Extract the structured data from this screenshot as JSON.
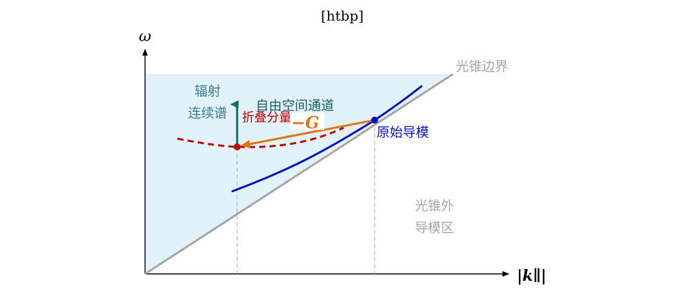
{
  "header": {
    "caption": "[htbp]"
  },
  "axes": {
    "y_label": "ω",
    "x_label": "|k∥|"
  },
  "labels": {
    "light_cone_boundary": "光锥边界",
    "radiation_line1": "辐射",
    "radiation_line2": "连续谱",
    "free_space_channel": "自由空间通道",
    "folded_component": "折叠分量",
    "reciprocal_vector": "−G",
    "original_guided_mode": "原始导模",
    "outside_line1": "光锥外",
    "outside_line2": "导模区"
  },
  "colors": {
    "radiation_region_fill": "#e2f2fb",
    "light_line": "#a6a6a6",
    "guided_mode_curve": "#0a10c0",
    "folded_curve": "#c00000",
    "shift_arrow": "#e07414",
    "radiation_arrow": "#0f6b66",
    "radiation_text": "#3c7f92",
    "free_space_text": "#1a5c62",
    "outside_text": "#a6a6a6",
    "axis": "#000000"
  }
}
